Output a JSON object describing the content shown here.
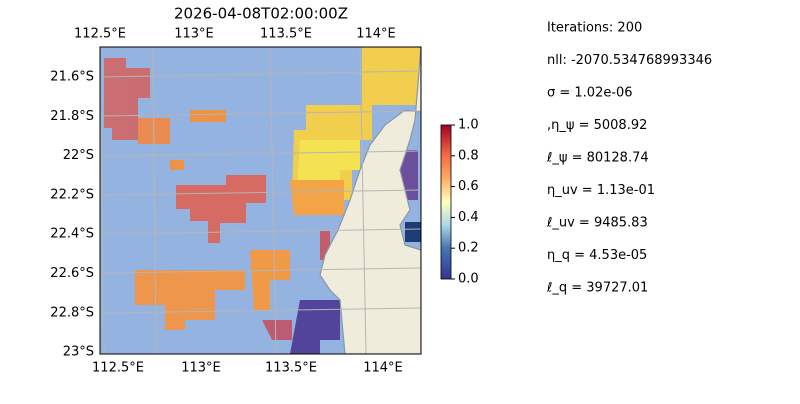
{
  "map": {
    "title": "2026-04-08T02:00:00Z",
    "lon_labels_top": [
      "112.5°E",
      "113°E",
      "113.5°E",
      "114°E"
    ],
    "lon_labels_bottom": [
      "112.5°E",
      "113°E",
      "113.5°E",
      "114°E"
    ],
    "lat_labels": [
      "21.6°S",
      "21.8°S",
      "22°S",
      "22.2°S",
      "22.4°S",
      "22.6°S",
      "22.8°S",
      "23°S"
    ]
  },
  "colorbar": {
    "ylim": [
      0,
      1
    ],
    "yticks": [
      {
        "value": 0,
        "label": "0.0"
      },
      {
        "value": 0.2,
        "label": "0.2"
      },
      {
        "value": 0.4,
        "label": "0.4"
      },
      {
        "value": 0.6,
        "label": "0.6"
      },
      {
        "value": 0.8,
        "label": "0.8"
      },
      {
        "value": 1,
        "label": "1.0"
      }
    ]
  },
  "info": [
    "Iterations: 200",
    "nll: -2070.534768993346",
    "σ = 1.02e-06",
    ",η_ψ = 5008.92",
    "ℓ_ψ = 80128.74",
    "η_uv = 1.13e-01",
    "ℓ_uv = 9485.83",
    "η_q = 4.53e-05",
    "ℓ_q = 39727.01"
  ]
}
